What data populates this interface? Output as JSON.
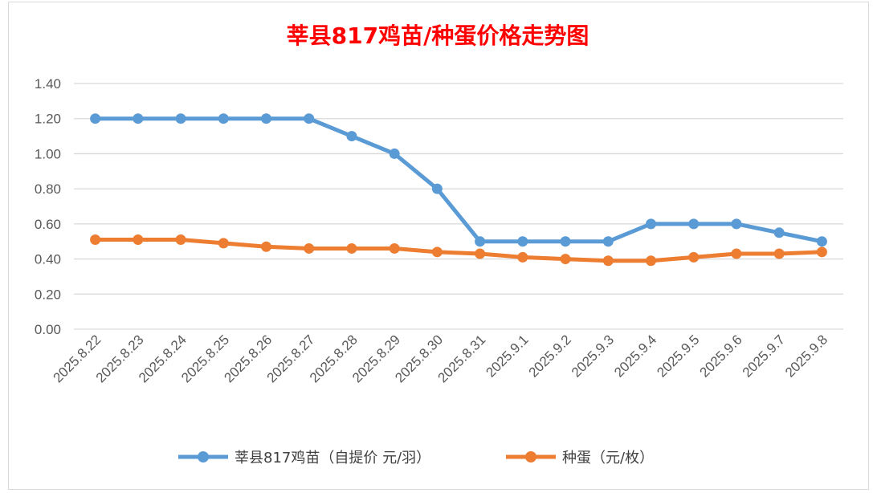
{
  "chart_data": {
    "type": "line",
    "title": "莘县817鸡苗/种蛋价格走势图",
    "xlabel": "",
    "ylabel": "",
    "ylim": [
      0,
      1.4
    ],
    "yticks": [
      "0.00",
      "0.20",
      "0.40",
      "0.60",
      "0.80",
      "1.00",
      "1.20",
      "1.40"
    ],
    "grid": true,
    "legend_position": "bottom",
    "categories": [
      "2025.8.22",
      "2025.8.23",
      "2025.8.24",
      "2025.8.25",
      "2025.8.26",
      "2025.8.27",
      "2025.8.28",
      "2025.8.29",
      "2025.8.30",
      "2025.8.31",
      "2025.9.1",
      "2025.9.2",
      "2025.9.3",
      "2025.9.4",
      "2025.9.5",
      "2025.9.6",
      "2025.9.7",
      "2025.9.8"
    ],
    "series": [
      {
        "name": "莘县817鸡苗（自提价 元/羽）",
        "color": "#5b9bd5",
        "values": [
          1.2,
          1.2,
          1.2,
          1.2,
          1.2,
          1.2,
          1.1,
          1.0,
          0.8,
          0.5,
          0.5,
          0.5,
          0.5,
          0.6,
          0.6,
          0.6,
          0.55,
          0.5
        ]
      },
      {
        "name": "种蛋（元/枚）",
        "color": "#ed7d31",
        "values": [
          0.51,
          0.51,
          0.51,
          0.49,
          0.47,
          0.46,
          0.46,
          0.46,
          0.44,
          0.43,
          0.41,
          0.4,
          0.39,
          0.39,
          0.41,
          0.43,
          0.43,
          0.44
        ]
      }
    ]
  }
}
